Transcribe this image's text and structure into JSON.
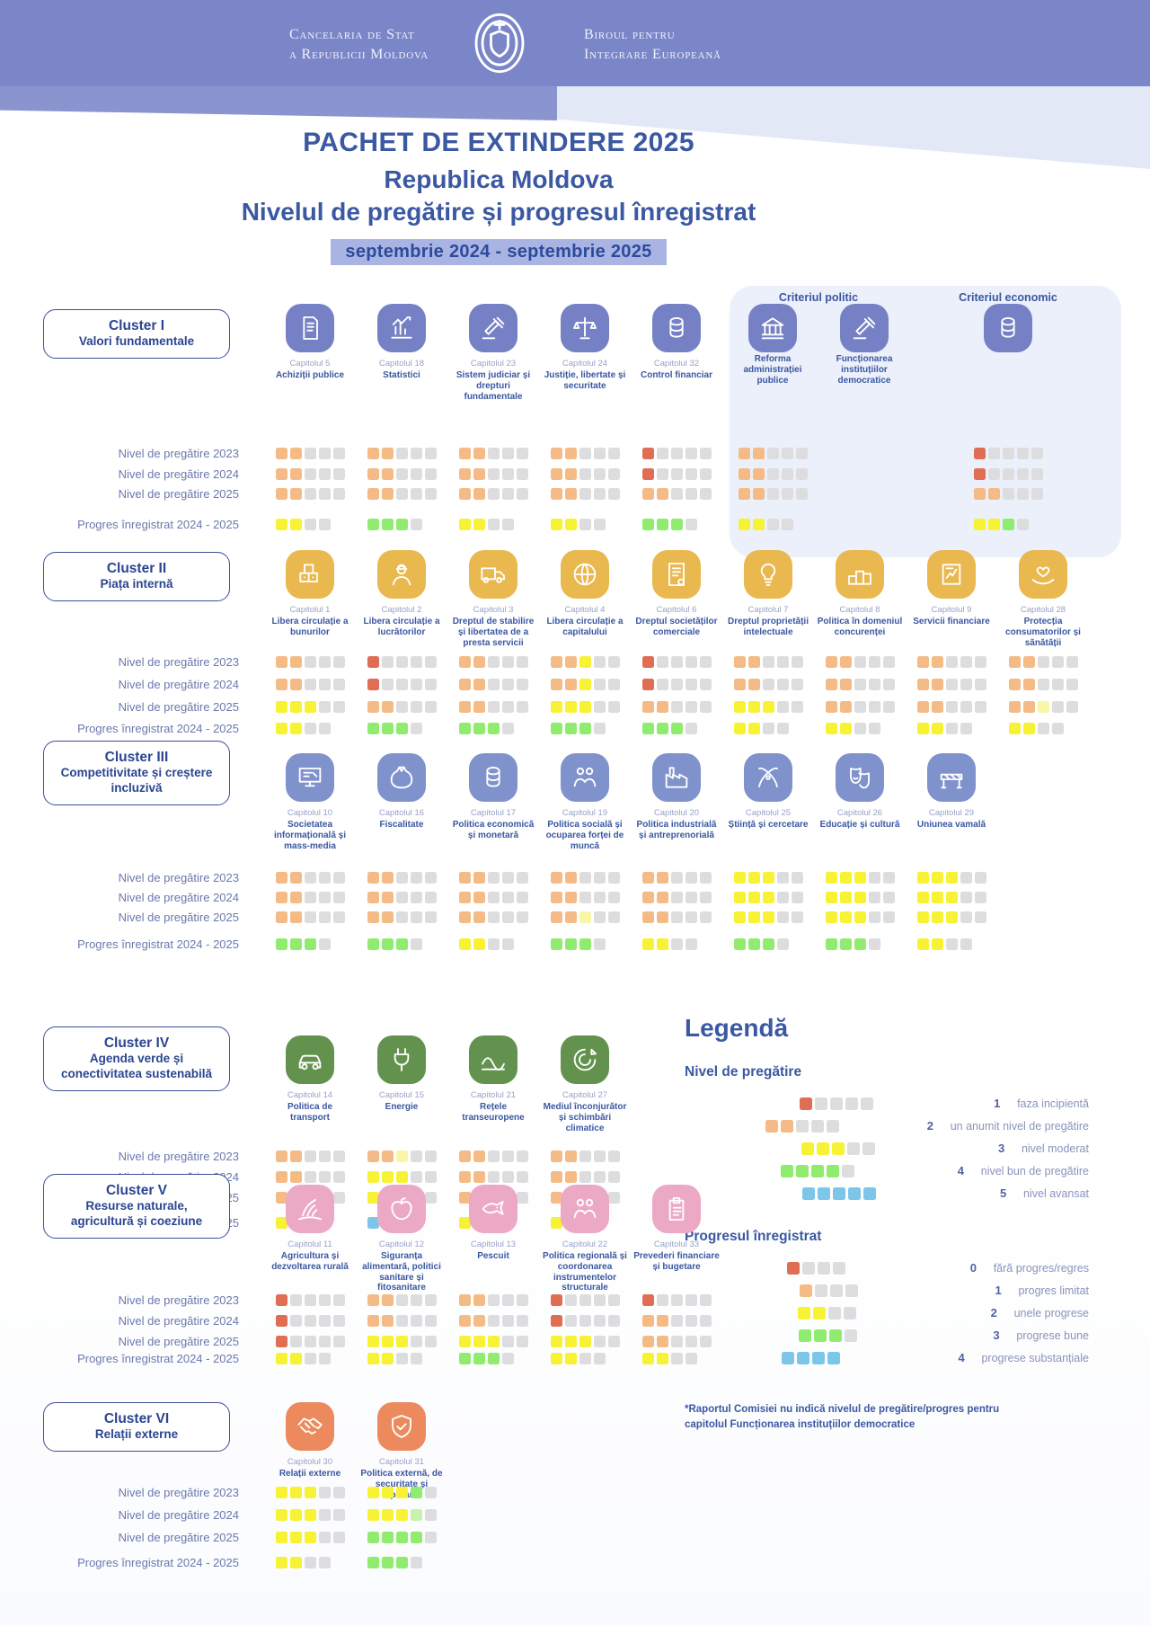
{
  "header": {
    "org_left_line1": "Cancelaria de Stat",
    "org_left_line2": "a Republicii Moldova",
    "org_right_line1": "Biroul pentru",
    "org_right_line2": "Integrare Europeană"
  },
  "title": {
    "line1": "PACHET DE EXTINDERE 2025",
    "line2": "Republica Moldova",
    "line3": "Nivelul de pregătire și progresul înregistrat",
    "period": "septembrie 2024  - septembrie 2025"
  },
  "row_labels": [
    "Nivel de pregătire 2023",
    "Nivel de pregătire 2024",
    "Nivel de pregătire 2025",
    "Progres înregistrat 2024 - 2025"
  ],
  "colors": {
    "r": "#df6e55",
    "o": "#f5bb86",
    "y": "#f7f233",
    "Y": "#faf6a8",
    "g": "#90ec6f",
    "G": "#c8f0b0",
    "b": "#7cc6e9",
    "e": "#dddddf"
  },
  "clusters": [
    {
      "id": "I",
      "title": "Cluster I",
      "subtitle": "Valori fundamentale",
      "color": "#7581c4",
      "chapters": [
        {
          "cap": "Capitolul 5",
          "name": "Achiziții publice",
          "icon": "document",
          "rows": [
            "ooeee",
            "ooeee",
            "ooeee",
            "yyee"
          ]
        },
        {
          "cap": "Capitolul 18",
          "name": "Statistici",
          "icon": "chart",
          "rows": [
            "ooeee",
            "ooeee",
            "ooeee",
            "ggge"
          ]
        },
        {
          "cap": "Capitolul 23",
          "name": "Sistem judiciar și drepturi fundamentale",
          "icon": "gavel",
          "rows": [
            "ooeee",
            "ooeee",
            "ooeee",
            "yyee"
          ]
        },
        {
          "cap": "Capitolul 24",
          "name": "Justiție, libertate și securitate",
          "icon": "scales",
          "rows": [
            "ooeee",
            "ooeee",
            "ooeee",
            "yyee"
          ]
        },
        {
          "cap": "Capitolul 32",
          "name": "Control financiar",
          "icon": "coins",
          "rows": [
            "reeee",
            "reeee",
            "ooeee",
            "ggge"
          ]
        }
      ],
      "criteria": {
        "politic_label": "Criteriul politic",
        "economic_label": "Criteriul economic",
        "politic": [
          {
            "cap": "",
            "name": "Reforma administrației publice",
            "icon": "bank",
            "rows": [
              "ooeee",
              "ooeee",
              "ooeee",
              "yyee"
            ]
          },
          {
            "cap": "",
            "name": "Funcționarea instituțiilor democratice",
            "icon": "gavel",
            "rows": [
              "",
              "",
              "",
              ""
            ]
          }
        ],
        "economic": [
          {
            "cap": "",
            "name": "",
            "icon": "coins",
            "rows": [
              "reeee",
              "reeee",
              "ooeee",
              "yyge"
            ]
          }
        ]
      }
    },
    {
      "id": "II",
      "title": "Cluster II",
      "subtitle": "Piața internă",
      "color": "#e9b84f",
      "chapters": [
        {
          "cap": "Capitolul 1",
          "name": "Libera circulație a bunurilor",
          "icon": "boxes",
          "rows": [
            "ooeee",
            "ooeee",
            "yyyee",
            "yyee"
          ]
        },
        {
          "cap": "Capitolul 2",
          "name": "Libera circulație a lucrătorilor",
          "icon": "worker",
          "rows": [
            "reeee",
            "reeee",
            "ooeee",
            "ggge"
          ]
        },
        {
          "cap": "Capitolul 3",
          "name": "Dreptul de stabilire și libertatea de a presta servicii",
          "icon": "truck",
          "rows": [
            "ooeee",
            "ooeee",
            "ooeee",
            "ggge"
          ]
        },
        {
          "cap": "Capitolul 4",
          "name": "Libera circulație a capitalului",
          "icon": "globe",
          "rows": [
            "ooyee",
            "ooyee",
            "yyyee",
            "ggge"
          ]
        },
        {
          "cap": "Capitolul 6",
          "name": "Dreptul societăților comerciale",
          "icon": "certificate",
          "rows": [
            "reeee",
            "reeee",
            "ooeee",
            "ggge"
          ]
        },
        {
          "cap": "Capitolul 7",
          "name": "Dreptul proprietății intelectuale",
          "icon": "bulb",
          "rows": [
            "ooeee",
            "ooeee",
            "yyyee",
            "yyee"
          ]
        },
        {
          "cap": "Capitolul 8",
          "name": "Politica în domeniul concurenței",
          "icon": "podium",
          "rows": [
            "ooeee",
            "ooeee",
            "ooeee",
            "yyee"
          ]
        },
        {
          "cap": "Capitolul 9",
          "name": "Servicii financiare",
          "icon": "finance",
          "rows": [
            "ooeee",
            "ooeee",
            "ooeee",
            "yyee"
          ]
        },
        {
          "cap": "Capitolul 28",
          "name": "Protecția consumatorilor și sănătății",
          "icon": "care",
          "rows": [
            "ooeee",
            "ooeee",
            "ooYee",
            "yyee"
          ]
        }
      ]
    },
    {
      "id": "III",
      "title": "Cluster III",
      "subtitle": "Competitivitate și creștere incluzivă",
      "color": "#8092cc",
      "chapters": [
        {
          "cap": "Capitolul 10",
          "name": "Societatea informațională și mass-media",
          "icon": "media",
          "rows": [
            "ooeee",
            "ooeee",
            "ooeee",
            "ggge"
          ]
        },
        {
          "cap": "Capitolul 16",
          "name": "Fiscalitate",
          "icon": "sack",
          "rows": [
            "ooeee",
            "ooeee",
            "ooeee",
            "ggge"
          ]
        },
        {
          "cap": "Capitolul 17",
          "name": "Politica economică și monetară",
          "icon": "coins",
          "rows": [
            "ooeee",
            "ooeee",
            "ooeee",
            "yyee"
          ]
        },
        {
          "cap": "Capitolul 19",
          "name": "Politica socială și ocuparea forței de muncă",
          "icon": "people",
          "rows": [
            "ooeee",
            "ooeee",
            "ooYee",
            "ggge"
          ]
        },
        {
          "cap": "Capitolul 20",
          "name": "Politica industrială și antreprenorială",
          "icon": "factory",
          "rows": [
            "ooeee",
            "ooeee",
            "ooeee",
            "yyee"
          ]
        },
        {
          "cap": "Capitolul 25",
          "name": "Știință și cercetare",
          "icon": "atom",
          "rows": [
            "yyyee",
            "yyyee",
            "yyyee",
            "ggge"
          ]
        },
        {
          "cap": "Capitolul 26",
          "name": "Educație și cultură",
          "icon": "masks",
          "rows": [
            "yyyee",
            "yyyee",
            "yyyee",
            "ggge"
          ]
        },
        {
          "cap": "Capitolul 29",
          "name": "Uniunea vamală",
          "icon": "barrier",
          "rows": [
            "yyyee",
            "yyyee",
            "yyyee",
            "yyee"
          ]
        }
      ]
    },
    {
      "id": "IV",
      "title": "Cluster IV",
      "subtitle": "Agenda verde și conectivitatea sustenabilă",
      "color": "#63924f",
      "chapters": [
        {
          "cap": "Capitolul 14",
          "name": "Politica de transport",
          "icon": "car",
          "rows": [
            "ooeee",
            "ooeee",
            "ooeee",
            "yyee"
          ]
        },
        {
          "cap": "Capitolul 15",
          "name": "Energie",
          "icon": "plug",
          "rows": [
            "ooYee",
            "yyyee",
            "yyyee",
            "bbbb"
          ]
        },
        {
          "cap": "Capitolul 21",
          "name": "Rețele transeuropene",
          "icon": "network",
          "rows": [
            "ooeee",
            "ooeee",
            "ooeee",
            "yyee"
          ]
        },
        {
          "cap": "Capitolul 27",
          "name": "Mediul înconjurător și schimbări climatice",
          "icon": "climate",
          "rows": [
            "ooeee",
            "ooeee",
            "ooeee",
            "yyee"
          ]
        }
      ]
    },
    {
      "id": "V",
      "title": "Cluster V",
      "subtitle": "Resurse naturale, agricultură și coeziune",
      "color": "#eca9c6",
      "chapters": [
        {
          "cap": "Capitolul 11",
          "name": "Agricultura și dezvoltarea rurală",
          "icon": "field",
          "rows": [
            "reeee",
            "reeee",
            "reeee",
            "yyee"
          ]
        },
        {
          "cap": "Capitolul 12",
          "name": "Siguranța alimentară, politici sanitare și fitosanitare",
          "icon": "food",
          "rows": [
            "ooeee",
            "ooeee",
            "yyyee",
            "yyee"
          ]
        },
        {
          "cap": "Capitolul 13",
          "name": "Pescuit",
          "icon": "fish",
          "rows": [
            "ooeee",
            "ooeee",
            "yyyee",
            "ggge"
          ]
        },
        {
          "cap": "Capitolul 22",
          "name": "Politica regională și coordonarea instrumentelor structurale",
          "icon": "people",
          "rows": [
            "reeee",
            "reeee",
            "yyyee",
            "yyee"
          ]
        },
        {
          "cap": "Capitolul 33",
          "name": "Prevederi financiare și bugetare",
          "icon": "clipboard",
          "rows": [
            "reeee",
            "ooeee",
            "ooeee",
            "yyee"
          ]
        }
      ]
    },
    {
      "id": "VI",
      "title": "Cluster VI",
      "subtitle": "Relații externe",
      "color": "#ec8a5e",
      "chapters": [
        {
          "cap": "Capitolul 30",
          "name": "Relații externe",
          "icon": "handshake",
          "rows": [
            "yyyee",
            "yyyee",
            "yyyee",
            "yyee"
          ]
        },
        {
          "cap": "Capitolul 31",
          "name": "Politica externă, de securitate și apărare",
          "icon": "shield",
          "rows": [
            "yyyge",
            "yyyGe",
            "gggge",
            "ggge"
          ]
        }
      ]
    }
  ],
  "legend": {
    "title": "Legendă",
    "level": {
      "title": "Nivel de pregătire",
      "items": [
        {
          "squares": "reeee",
          "num": "1",
          "label": "faza incipientă"
        },
        {
          "squares": "ooeee",
          "num": "2",
          "label": "un anumit nivel de pregătire"
        },
        {
          "squares": "yyyee",
          "num": "3",
          "label": "nivel moderat"
        },
        {
          "squares": "gggge",
          "num": "4",
          "label": "nivel bun de pregătire"
        },
        {
          "squares": "bbbbb",
          "num": "5",
          "label": "nivel avansat"
        }
      ]
    },
    "progress": {
      "title": "Progresul  înregistrat",
      "items": [
        {
          "squares": "reee",
          "num": "0",
          "label": "fără progres/regres"
        },
        {
          "squares": "oeee",
          "num": "1",
          "label": "progres limitat"
        },
        {
          "squares": "yyee",
          "num": "2",
          "label": "unele progrese"
        },
        {
          "squares": "ggge",
          "num": "3",
          "label": "progrese bune"
        },
        {
          "squares": "bbbb",
          "num": "4",
          "label": "progrese substanțiale"
        }
      ]
    }
  },
  "footnote": "*Raportul Comisiei nu indică nivelul de pregătire/progres pentru capitolul Funcționarea instituțiilor democratice"
}
